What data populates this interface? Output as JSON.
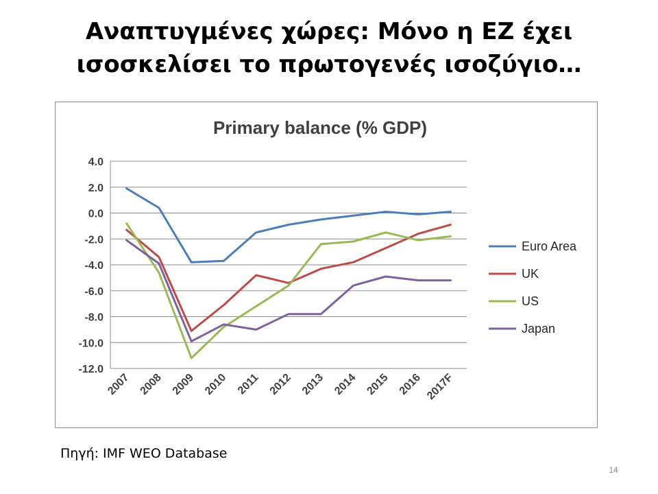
{
  "slide": {
    "title_line1": "Αναπτυγμένες χώρες: Μόνο η ΕΖ έχει",
    "title_line2": "ισοσκελίσει το πρωτογενές ισοζύγιο…",
    "source": "Πηγή: IMF WEO Database",
    "page_number": "14"
  },
  "chart_data": {
    "type": "line",
    "title": "Primary balance (% GDP)",
    "xlabel": "",
    "ylabel": "",
    "categories": [
      "2007",
      "2008",
      "2009",
      "2010",
      "2011",
      "2012",
      "2013",
      "2014",
      "2015",
      "2016",
      "2017F"
    ],
    "ylim": [
      -12,
      4
    ],
    "ytick_step": 2,
    "ytick_labels": [
      "4.0",
      "2.0",
      "0.0",
      "-2.0",
      "-4.0",
      "-6.0",
      "-8.0",
      "-10.0",
      "-12.0"
    ],
    "grid": true,
    "legend_position": "right",
    "series": [
      {
        "name": "Euro Area",
        "color": "#4a7ebb",
        "values": [
          1.9,
          0.4,
          -3.8,
          -3.7,
          -1.5,
          -0.9,
          -0.5,
          -0.2,
          0.1,
          -0.1,
          0.1
        ]
      },
      {
        "name": "UK",
        "color": "#be4b48",
        "values": [
          -1.3,
          -3.4,
          -9.1,
          -7.1,
          -4.8,
          -5.4,
          -4.3,
          -3.8,
          -2.7,
          -1.6,
          -0.9
        ]
      },
      {
        "name": "US",
        "color": "#98b954",
        "values": [
          -0.8,
          -4.6,
          -11.2,
          -8.8,
          -7.2,
          -5.6,
          -2.4,
          -2.2,
          -1.5,
          -2.1,
          -1.8
        ]
      },
      {
        "name": "Japan",
        "color": "#7d60a0",
        "values": [
          -2.1,
          -3.9,
          -9.9,
          -8.6,
          -9.0,
          -7.8,
          -7.8,
          -5.6,
          -4.9,
          -5.2,
          -5.2
        ]
      }
    ]
  }
}
